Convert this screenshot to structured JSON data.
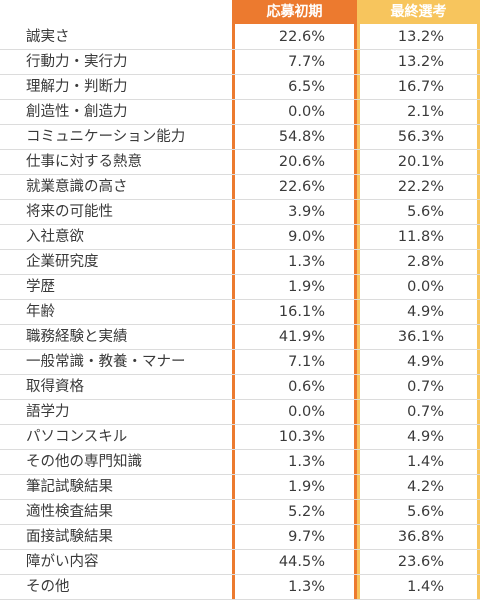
{
  "chart_data": {
    "type": "table",
    "columns": [
      "応募初期",
      "最終選考"
    ],
    "colors": {
      "応募初期": "#ec7a2f",
      "最終選考": "#f7c55d"
    },
    "rows": [
      {
        "label": "誠実さ",
        "values": [
          "22.6%",
          "13.2%"
        ]
      },
      {
        "label": "行動力・実行力",
        "values": [
          "7.7%",
          "13.2%"
        ]
      },
      {
        "label": "理解力・判断力",
        "values": [
          "6.5%",
          "16.7%"
        ]
      },
      {
        "label": "創造性・創造力",
        "values": [
          "0.0%",
          "2.1%"
        ]
      },
      {
        "label": "コミュニケーション能力",
        "values": [
          "54.8%",
          "56.3%"
        ]
      },
      {
        "label": "仕事に対する熱意",
        "values": [
          "20.6%",
          "20.1%"
        ]
      },
      {
        "label": "就業意識の高さ",
        "values": [
          "22.6%",
          "22.2%"
        ]
      },
      {
        "label": "将来の可能性",
        "values": [
          "3.9%",
          "5.6%"
        ]
      },
      {
        "label": "入社意欲",
        "values": [
          "9.0%",
          "11.8%"
        ]
      },
      {
        "label": "企業研究度",
        "values": [
          "1.3%",
          "2.8%"
        ]
      },
      {
        "label": "学歴",
        "values": [
          "1.9%",
          "0.0%"
        ]
      },
      {
        "label": "年齢",
        "values": [
          "16.1%",
          "4.9%"
        ]
      },
      {
        "label": "職務経験と実績",
        "values": [
          "41.9%",
          "36.1%"
        ]
      },
      {
        "label": "一般常識・教養・マナー",
        "values": [
          "7.1%",
          "4.9%"
        ]
      },
      {
        "label": "取得資格",
        "values": [
          "0.6%",
          "0.7%"
        ]
      },
      {
        "label": "語学力",
        "values": [
          "0.0%",
          "0.7%"
        ]
      },
      {
        "label": "パソコンスキル",
        "values": [
          "10.3%",
          "4.9%"
        ]
      },
      {
        "label": "その他の専門知識",
        "values": [
          "1.3%",
          "1.4%"
        ]
      },
      {
        "label": "筆記試験結果",
        "values": [
          "1.9%",
          "4.2%"
        ]
      },
      {
        "label": "適性検査結果",
        "values": [
          "5.2%",
          "5.6%"
        ]
      },
      {
        "label": "面接試験結果",
        "values": [
          "9.7%",
          "36.8%"
        ]
      },
      {
        "label": "障がい内容",
        "values": [
          "44.5%",
          "23.6%"
        ]
      },
      {
        "label": "その他",
        "values": [
          "1.3%",
          "1.4%"
        ]
      }
    ]
  }
}
